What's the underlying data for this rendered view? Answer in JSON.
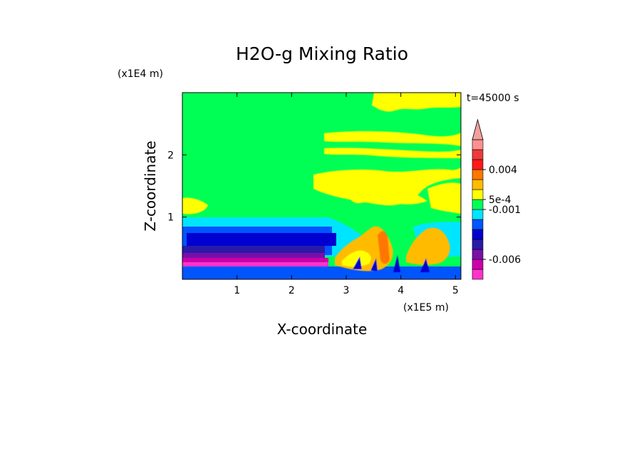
{
  "chart_data": {
    "type": "heatmap",
    "title": "H2O-g Mixing Ratio",
    "xlabel": "X-coordinate",
    "ylabel": "Z-coordinate",
    "x_multiplier": "(x1E5 m)",
    "y_multiplier": "(x1E4 m)",
    "time_label": "t=45000 s",
    "xlim": [
      0,
      5.1
    ],
    "ylim": [
      0,
      3.0
    ],
    "x_ticks": [
      {
        "value": 1,
        "label": "1"
      },
      {
        "value": 2,
        "label": "2"
      },
      {
        "value": 3,
        "label": "3"
      },
      {
        "value": 4,
        "label": "4"
      },
      {
        "value": 5,
        "label": "5"
      }
    ],
    "y_ticks": [
      {
        "value": 1,
        "label": "1"
      },
      {
        "value": 2,
        "label": "2"
      }
    ],
    "colorbar": {
      "extend_max": true,
      "colors": [
        "#ff33cc",
        "#cc00aa",
        "#7a0fa8",
        "#2a1aa8",
        "#0000d0",
        "#0055ff",
        "#00e5ff",
        "#00ff55",
        "#ffff00",
        "#ffbb00",
        "#ff7700",
        "#ff1a1a",
        "#ee3a3a",
        "#ff9090"
      ],
      "tick_labels": [
        {
          "level": 2,
          "label": "-0.006"
        },
        {
          "level": 7,
          "label": "-0.001"
        },
        {
          "level": 8,
          "label": "5e-4"
        },
        {
          "level": 11,
          "label": "0.004"
        }
      ]
    }
  }
}
